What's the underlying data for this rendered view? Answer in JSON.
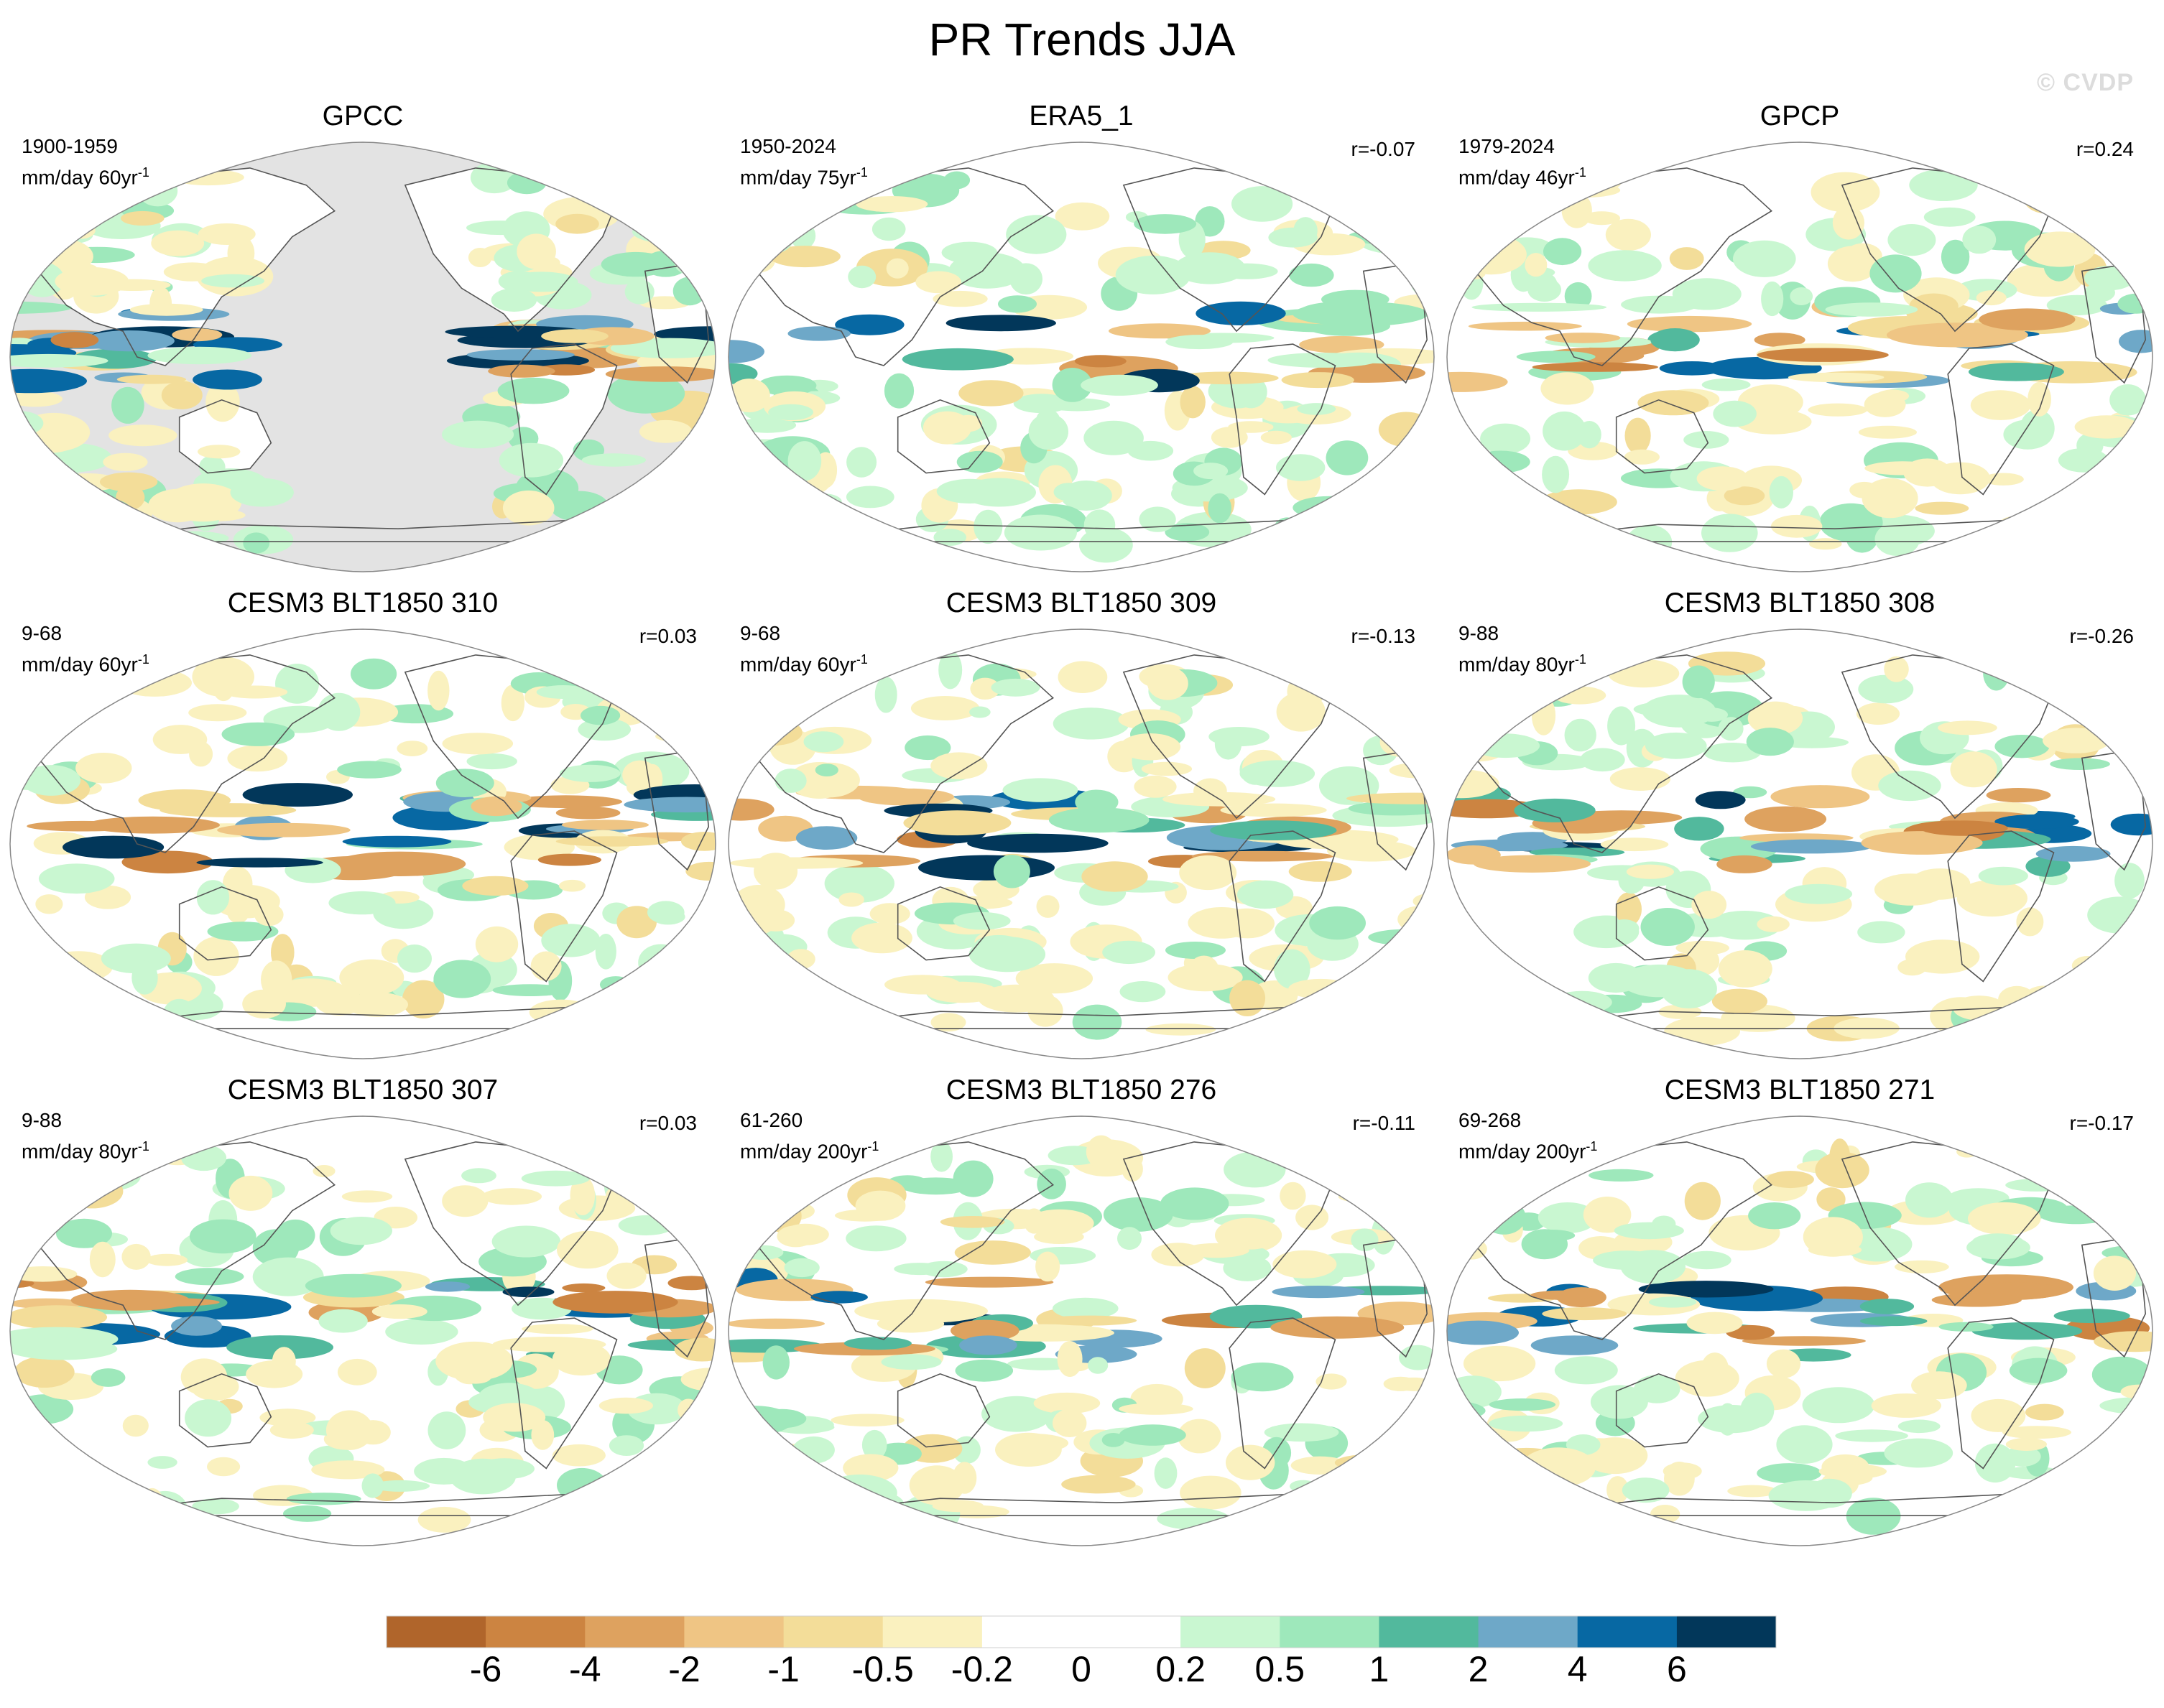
{
  "figure": {
    "title": "PR Trends JJA",
    "watermark": "© CVDP"
  },
  "chart_data": {
    "type": "heatmap",
    "title": "PR Trends JJA",
    "variable": "precipitation trend",
    "season": "JJA",
    "projection": "robinson",
    "colorbar": {
      "levels": [
        -6,
        -4,
        -2,
        -1,
        -0.5,
        -0.2,
        0,
        0.2,
        0.5,
        1,
        2,
        4,
        6
      ],
      "tick_labels": [
        "-6",
        "-4",
        "-2",
        "-1",
        "-0.5",
        "-0.2",
        "0",
        "0.2",
        "0.5",
        "1",
        "2",
        "4",
        "6"
      ],
      "colors": [
        "#b0652b",
        "#cc8441",
        "#dea25f",
        "#efc584",
        "#f3dd99",
        "#faf1bf",
        "#ffffff",
        "#ffffff",
        "#c9f7d1",
        "#9ee8bb",
        "#52b99d",
        "#6ea8c8",
        "#0768a3",
        "#02375a"
      ]
    },
    "panels": [
      {
        "title": "GPCC",
        "period": "1900-1959",
        "units": "mm/day 60yr",
        "units_exp": "-1",
        "corr": "",
        "missing_ocean": true
      },
      {
        "title": "ERA5_1",
        "period": "1950-2024",
        "units": "mm/day 75yr",
        "units_exp": "-1",
        "corr": "r=-0.07",
        "missing_ocean": false
      },
      {
        "title": "GPCP",
        "period": "1979-2024",
        "units": "mm/day 46yr",
        "units_exp": "-1",
        "corr": "r=0.24",
        "missing_ocean": false
      },
      {
        "title": "CESM3 BLT1850 310",
        "period": "9-68",
        "units": "mm/day 60yr",
        "units_exp": "-1",
        "corr": "r=0.03",
        "missing_ocean": false
      },
      {
        "title": "CESM3 BLT1850 309",
        "period": "9-68",
        "units": "mm/day 60yr",
        "units_exp": "-1",
        "corr": "r=-0.13",
        "missing_ocean": false
      },
      {
        "title": "CESM3 BLT1850 308",
        "period": "9-88",
        "units": "mm/day 80yr",
        "units_exp": "-1",
        "corr": "r=-0.26",
        "missing_ocean": false
      },
      {
        "title": "CESM3 BLT1850 307",
        "period": "9-88",
        "units": "mm/day 80yr",
        "units_exp": "-1",
        "corr": "r=0.03",
        "missing_ocean": false
      },
      {
        "title": "CESM3 BLT1850 276",
        "period": "61-260",
        "units": "mm/day 200yr",
        "units_exp": "-1",
        "corr": "r=-0.11",
        "missing_ocean": false
      },
      {
        "title": "CESM3 BLT1850 271",
        "period": "69-268",
        "units": "mm/day 200yr",
        "units_exp": "-1",
        "corr": "r=-0.17",
        "missing_ocean": false
      }
    ]
  }
}
